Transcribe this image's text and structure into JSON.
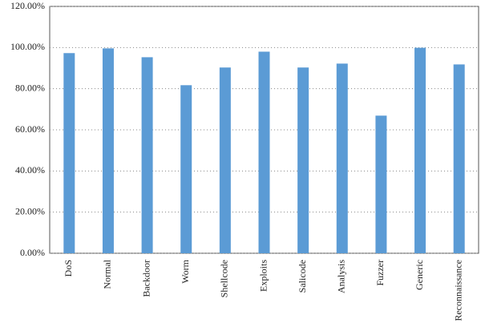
{
  "chart_data": {
    "type": "bar",
    "categories": [
      "DoS",
      "Normal",
      "Backdoor",
      "Worm",
      "Shellcode",
      "Exploits",
      "Salicode",
      "Analysis",
      "Fuzzer",
      "Generic",
      "Reconnaissance"
    ],
    "values": [
      97.3,
      99.6,
      95.3,
      81.7,
      90.3,
      98.0,
      90.3,
      92.2,
      66.9,
      99.9,
      91.8
    ],
    "color": "#5b9bd5",
    "ylim": [
      0,
      120
    ],
    "yticks": [
      {
        "value": 0,
        "label": "0.00%"
      },
      {
        "value": 20,
        "label": "20.00%"
      },
      {
        "value": 40,
        "label": "40.00%"
      },
      {
        "value": 60,
        "label": "60.00%"
      },
      {
        "value": 80,
        "label": "80.00%"
      },
      {
        "value": 100,
        "label": "100.00%"
      },
      {
        "value": 120,
        "label": "120.00%"
      }
    ],
    "grid": true
  }
}
